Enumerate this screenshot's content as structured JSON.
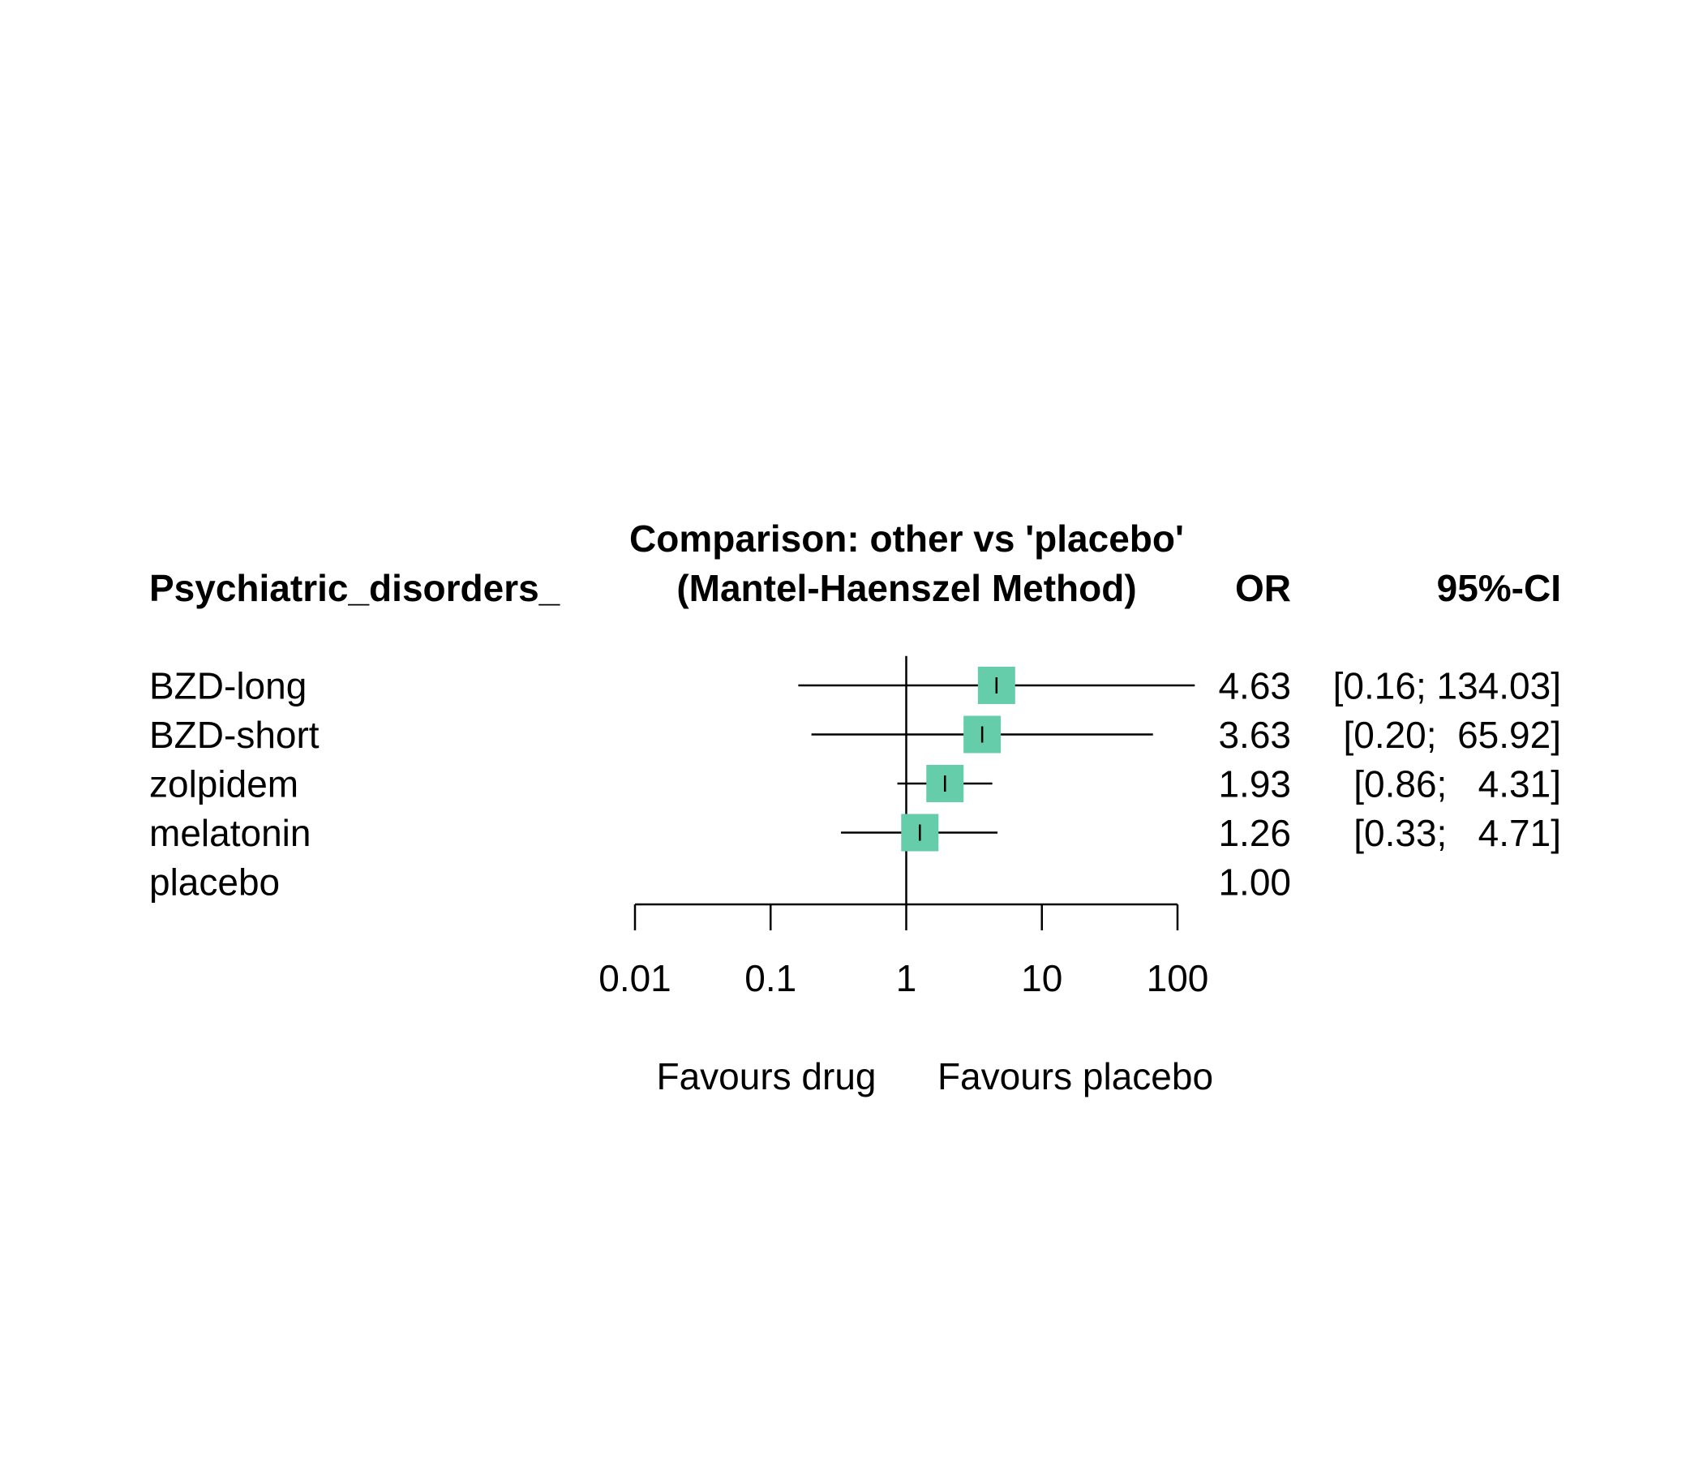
{
  "chart_data": {
    "type": "forest",
    "title": "Comparison: other vs 'placebo'",
    "subtitle": "(Mantel-Haenszel Method)",
    "row_header": "Psychiatric_disorders_",
    "col_or_header": "OR",
    "col_ci_header": "95%-CI",
    "x_scale": "log",
    "xlim": [
      0.01,
      100
    ],
    "x_ticks": [
      0.01,
      0.1,
      1,
      10,
      100
    ],
    "x_tick_labels": [
      "0.01",
      "0.1",
      "1",
      "10",
      "100"
    ],
    "reference_value": 1,
    "label_left": "Favours drug",
    "label_right": "Favours placebo",
    "marker_color": "#66CDAA",
    "rows": [
      {
        "label": "BZD-long",
        "or": 4.63,
        "lower": 0.16,
        "upper": 134.03,
        "or_text": "4.63",
        "ci_text": "[0.16; 134.03]"
      },
      {
        "label": "BZD-short",
        "or": 3.63,
        "lower": 0.2,
        "upper": 65.92,
        "or_text": "3.63",
        "ci_text": "[0.20;  65.92]"
      },
      {
        "label": "zolpidem",
        "or": 1.93,
        "lower": 0.86,
        "upper": 4.31,
        "or_text": "1.93",
        "ci_text": "[0.86;   4.31]"
      },
      {
        "label": "melatonin",
        "or": 1.26,
        "lower": 0.33,
        "upper": 4.71,
        "or_text": "1.26",
        "ci_text": "[0.33;   4.71]"
      },
      {
        "label": "placebo",
        "or": 1.0,
        "lower": null,
        "upper": null,
        "or_text": "1.00",
        "ci_text": ""
      }
    ]
  }
}
